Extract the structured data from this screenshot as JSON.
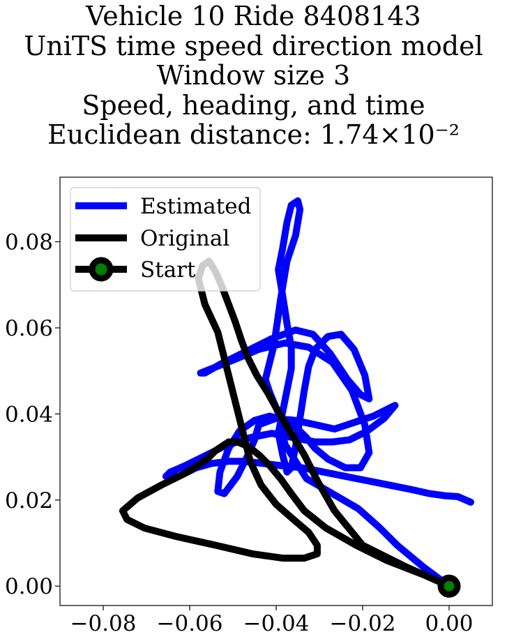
{
  "chart_data": {
    "type": "line",
    "title_lines": [
      "Vehicle 10 Ride 8408143",
      "UniTS time speed direction model",
      "Window size 3",
      "Speed, heading, and time",
      "Euclidean distance: 1.74×10⁻²"
    ],
    "xlabel": "",
    "ylabel": "",
    "xlim": [
      -0.09,
      0.01
    ],
    "ylim": [
      -0.0045,
      0.095
    ],
    "x_ticks": [
      -0.08,
      -0.06,
      -0.04,
      -0.02,
      0.0
    ],
    "x_tick_labels": [
      "−0.08",
      "−0.06",
      "−0.04",
      "−0.02",
      "0.00"
    ],
    "y_ticks": [
      0.0,
      0.02,
      0.04,
      0.06,
      0.08
    ],
    "y_tick_labels": [
      "0.00",
      "0.02",
      "0.04",
      "0.06",
      "0.08"
    ],
    "grid": false,
    "legend_position": "top-left",
    "series": [
      {
        "name": "Estimated",
        "color": "#0000ff",
        "x": [
          0.0,
          -0.006,
          -0.012,
          -0.016,
          -0.021,
          -0.027,
          -0.033,
          -0.038,
          -0.039,
          -0.0415,
          -0.0425,
          -0.0415,
          -0.0405,
          -0.039,
          -0.0375,
          -0.0355,
          -0.0345,
          -0.035,
          -0.0365,
          -0.0375,
          -0.0385,
          -0.0395,
          -0.0385,
          -0.0375,
          -0.0365,
          -0.0365,
          -0.0375,
          -0.0385,
          -0.0395,
          -0.0385,
          -0.0375,
          -0.0365,
          -0.0355,
          -0.0345,
          -0.0335,
          -0.0325,
          -0.031,
          -0.028,
          -0.025,
          -0.022,
          -0.0195,
          -0.0185,
          -0.0205,
          -0.0235,
          -0.0275,
          -0.0315,
          -0.0355,
          -0.041,
          -0.047,
          -0.053,
          -0.0565,
          -0.0575,
          -0.055,
          -0.05,
          -0.044,
          -0.038,
          -0.0325,
          -0.027,
          -0.0225,
          -0.0195,
          -0.0185,
          -0.0205,
          -0.024,
          -0.028,
          -0.031,
          -0.033,
          -0.035,
          -0.038,
          -0.0415,
          -0.045,
          -0.0485,
          -0.051,
          -0.053,
          -0.0535,
          -0.052,
          -0.049,
          -0.0465,
          -0.045,
          -0.044,
          -0.04,
          -0.0355,
          -0.031,
          -0.0265,
          -0.022,
          -0.0175,
          -0.0135,
          -0.0125,
          -0.015,
          -0.019,
          -0.023,
          -0.027,
          -0.031,
          -0.036,
          -0.041,
          -0.046,
          -0.052,
          -0.057,
          -0.061,
          -0.0645,
          -0.0655,
          -0.0625,
          -0.0585,
          -0.055,
          -0.051,
          -0.047,
          -0.043,
          -0.039,
          -0.034,
          -0.029,
          -0.024,
          -0.019,
          -0.014,
          -0.009,
          -0.0045,
          -0.001,
          0.002,
          0.005
        ],
        "y": [
          0.0,
          0.0045,
          0.0095,
          0.0135,
          0.018,
          0.0215,
          0.025,
          0.033,
          0.039,
          0.045,
          0.048,
          0.052,
          0.056,
          0.0665,
          0.0755,
          0.0815,
          0.0875,
          0.0895,
          0.0885,
          0.0845,
          0.0785,
          0.0735,
          0.0675,
          0.061,
          0.0555,
          0.0505,
          0.0455,
          0.0405,
          0.0355,
          0.0305,
          0.0265,
          0.0275,
          0.0325,
          0.039,
          0.0455,
          0.051,
          0.055,
          0.058,
          0.0585,
          0.055,
          0.049,
          0.0435,
          0.0445,
          0.048,
          0.054,
          0.0585,
          0.0595,
          0.0575,
          0.0545,
          0.0515,
          0.0495,
          0.0495,
          0.0505,
          0.0525,
          0.055,
          0.0565,
          0.0555,
          0.052,
          0.0455,
          0.0375,
          0.031,
          0.0275,
          0.0275,
          0.0295,
          0.032,
          0.0345,
          0.0365,
          0.0385,
          0.0395,
          0.0385,
          0.036,
          0.032,
          0.0265,
          0.022,
          0.0215,
          0.0255,
          0.0305,
          0.034,
          0.0375,
          0.039,
          0.0385,
          0.0375,
          0.0365,
          0.038,
          0.0395,
          0.0415,
          0.042,
          0.039,
          0.036,
          0.034,
          0.0335,
          0.0335,
          0.0345,
          0.0355,
          0.0345,
          0.0325,
          0.03,
          0.028,
          0.0265,
          0.0255,
          0.0255,
          0.0275,
          0.0285,
          0.029,
          0.029,
          0.0285,
          0.028,
          0.0275,
          0.0265,
          0.0255,
          0.0245,
          0.0235,
          0.0225,
          0.0215,
          0.021,
          0.0208,
          0.0195
        ]
      },
      {
        "name": "Original",
        "color": "#000000",
        "x": [
          0.0,
          -0.01,
          -0.02,
          -0.0265,
          -0.0305,
          -0.0335,
          -0.0365,
          -0.0395,
          -0.042,
          -0.0445,
          -0.0465,
          -0.048,
          -0.0495,
          -0.051,
          -0.0525,
          -0.054,
          -0.0555,
          -0.057,
          -0.058,
          -0.0565,
          -0.0535,
          -0.052,
          -0.0505,
          -0.049,
          -0.0475,
          -0.046,
          -0.0435,
          -0.04,
          -0.036,
          -0.0325,
          -0.0305,
          -0.0305,
          -0.0335,
          -0.0385,
          -0.0455,
          -0.054,
          -0.063,
          -0.0705,
          -0.0745,
          -0.0755,
          -0.072,
          -0.0665,
          -0.0605,
          -0.056,
          -0.054,
          -0.0525,
          -0.051,
          -0.049,
          -0.0465,
          -0.044,
          -0.0415,
          -0.039,
          -0.0365,
          -0.0335,
          -0.0285,
          -0.0215,
          -0.0145,
          -0.0055,
          0.0
        ],
        "y": [
          0.0,
          0.0045,
          0.0095,
          0.0175,
          0.0245,
          0.0305,
          0.0355,
          0.0405,
          0.045,
          0.049,
          0.053,
          0.057,
          0.0615,
          0.0655,
          0.0695,
          0.073,
          0.0755,
          0.0745,
          0.0715,
          0.0655,
          0.059,
          0.053,
          0.047,
          0.041,
          0.035,
          0.029,
          0.0235,
          0.019,
          0.0155,
          0.0125,
          0.0095,
          0.0075,
          0.0065,
          0.0065,
          0.0075,
          0.0095,
          0.0115,
          0.0135,
          0.0155,
          0.0175,
          0.0205,
          0.0235,
          0.0265,
          0.0295,
          0.0315,
          0.0325,
          0.0335,
          0.0335,
          0.0325,
          0.0305,
          0.028,
          0.025,
          0.0215,
          0.0175,
          0.0135,
          0.0095,
          0.006,
          0.0025,
          0.0
        ]
      }
    ],
    "start": {
      "name": "Start",
      "x": 0.0,
      "y": 0.0,
      "marker_color": "#008000",
      "edge_color": "#000000"
    }
  }
}
